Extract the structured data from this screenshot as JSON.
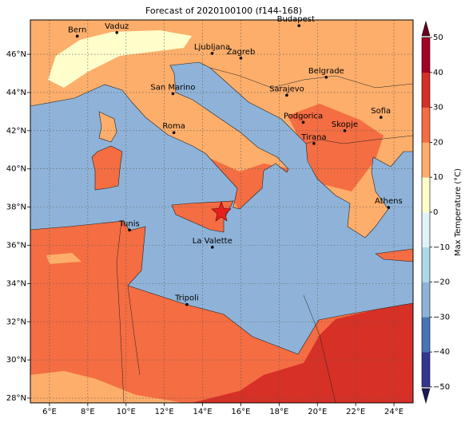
{
  "title": "Forecast of 2020100100 (f144-168)",
  "map": {
    "xlim": [
      5,
      25
    ],
    "ylim": [
      27.75,
      47.8
    ],
    "grid": true,
    "xticks": [
      {
        "value": 6,
        "label": "6°E"
      },
      {
        "value": 8,
        "label": "8°E"
      },
      {
        "value": 10,
        "label": "10°E"
      },
      {
        "value": 12,
        "label": "12°E"
      },
      {
        "value": 14,
        "label": "14°E"
      },
      {
        "value": 16,
        "label": "16°E"
      },
      {
        "value": 18,
        "label": "18°E"
      },
      {
        "value": 20,
        "label": "20°E"
      },
      {
        "value": 22,
        "label": "22°E"
      },
      {
        "value": 24,
        "label": "24°E"
      }
    ],
    "yticks": [
      {
        "value": 28,
        "label": "28°N"
      },
      {
        "value": 30,
        "label": "30°N"
      },
      {
        "value": 32,
        "label": "32°N"
      },
      {
        "value": 34,
        "label": "34°N"
      },
      {
        "value": 36,
        "label": "36°N"
      },
      {
        "value": 38,
        "label": "38°N"
      },
      {
        "value": 40,
        "label": "40°N"
      },
      {
        "value": 42,
        "label": "42°N"
      },
      {
        "value": 44,
        "label": "44°N"
      },
      {
        "value": 46,
        "label": "46°N"
      }
    ],
    "cities": [
      "Bern",
      "Vaduz",
      "Budapest",
      "Ljubljana",
      "Zagreb",
      "Belgrade",
      "San Marino",
      "Sarajevo",
      "Roma",
      "Podgorica",
      "Skopje",
      "Sofia",
      "Tirana",
      "Athens",
      "Tunis",
      "La Valette",
      "Tripoli"
    ]
  },
  "colorbar": {
    "label": "Max Temperature (°C)",
    "lim": [
      -50,
      50
    ],
    "colors": [
      "#313695",
      "#4575b4",
      "#8fb3d8",
      "#abd9e9",
      "#e0f3f8",
      "#ffffcc",
      "#fdae6b",
      "#f46d43",
      "#d73027",
      "#a50026"
    ],
    "ticks": [
      {
        "value": -50,
        "label": "−50"
      },
      {
        "value": -40,
        "label": "−40"
      },
      {
        "value": -30,
        "label": "−30"
      },
      {
        "value": -20,
        "label": "−20"
      },
      {
        "value": -10,
        "label": "−10"
      },
      0,
      10,
      20,
      30,
      40,
      50
    ]
  }
}
